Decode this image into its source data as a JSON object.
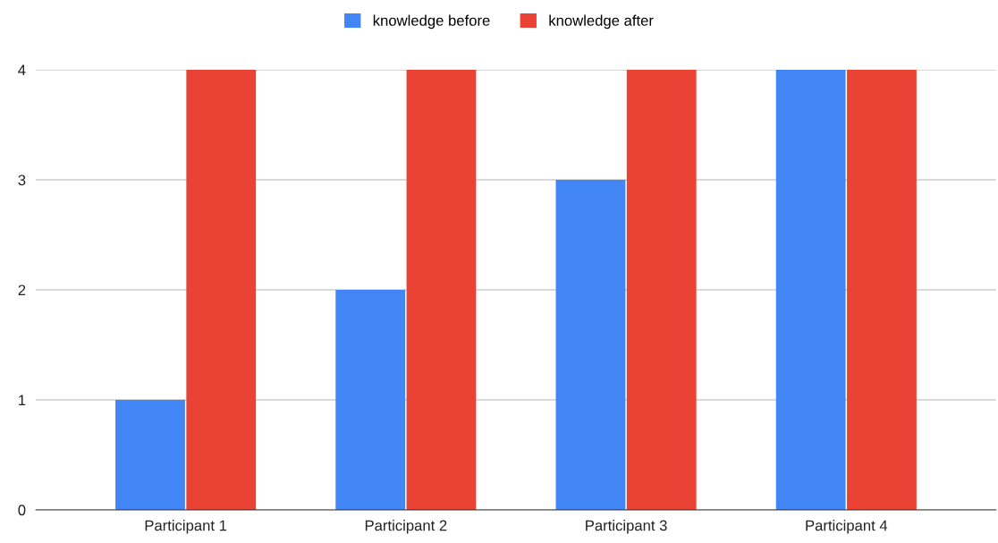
{
  "chart_data": {
    "type": "bar",
    "categories": [
      "Participant 1",
      "Participant 2",
      "Participant 3",
      "Participant 4"
    ],
    "series": [
      {
        "name": "knowledge before",
        "color": "#4285f4",
        "values": [
          1,
          2,
          3,
          4
        ]
      },
      {
        "name": "knowledge after",
        "color": "#ea4335",
        "values": [
          4,
          4,
          4,
          4
        ]
      }
    ],
    "ylim": [
      0,
      4
    ],
    "yticks": [
      0,
      1,
      2,
      3,
      4
    ],
    "grid": "y",
    "legend": "top"
  }
}
